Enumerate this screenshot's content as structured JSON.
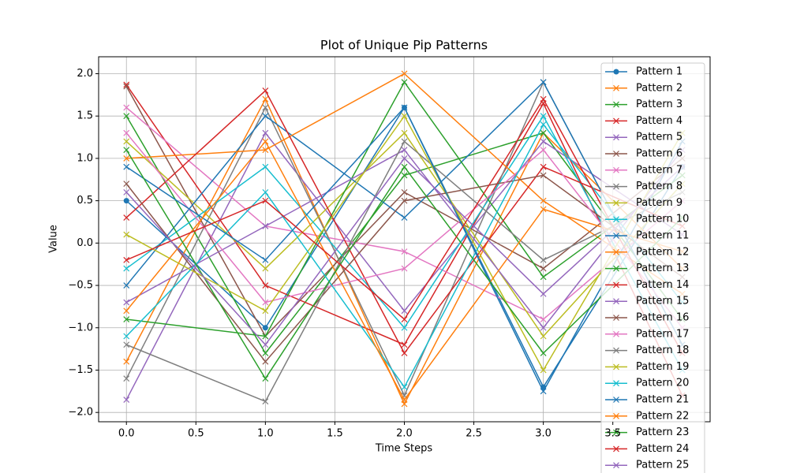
{
  "chart_data": {
    "type": "line",
    "title": "Plot of Unique Pip Patterns",
    "xlabel": "Time Steps",
    "ylabel": "Value",
    "x": [
      0,
      1,
      2,
      3,
      4
    ],
    "xlim": [
      -0.2,
      4.2
    ],
    "ylim": [
      -2.11,
      2.2
    ],
    "xticks": [
      {
        "value": 0,
        "label": "0.0"
      },
      {
        "value": 0.5,
        "label": "0.5"
      },
      {
        "value": 1,
        "label": "1.0"
      },
      {
        "value": 1.5,
        "label": "1.5"
      },
      {
        "value": 2,
        "label": "2.0"
      },
      {
        "value": 2.5,
        "label": "2.5"
      },
      {
        "value": 3,
        "label": "3.0"
      },
      {
        "value": 3.5,
        "label": "3.5"
      }
    ],
    "yticks": [
      {
        "value": -2,
        "label": "−2.0"
      },
      {
        "value": -1.5,
        "label": "−1.5"
      },
      {
        "value": -1,
        "label": "−1.0"
      },
      {
        "value": -0.5,
        "label": "−0.5"
      },
      {
        "value": 0,
        "label": "0.0"
      },
      {
        "value": 0.5,
        "label": "0.5"
      },
      {
        "value": 1,
        "label": "1.0"
      },
      {
        "value": 1.5,
        "label": "1.5"
      },
      {
        "value": 2,
        "label": "2.0"
      }
    ],
    "grid": true,
    "legend": "upper right",
    "series": [
      {
        "name": "Pattern 1",
        "color": "#1f77b4",
        "marker": "o",
        "values": [
          0.5,
          -1.0,
          1.6,
          -1.7,
          0.9
        ]
      },
      {
        "name": "Pattern 2",
        "color": "#ff7f0e",
        "marker": "x",
        "values": [
          -1.4,
          1.7,
          -1.9,
          1.3,
          -0.3
        ]
      },
      {
        "name": "Pattern 3",
        "color": "#2ca02c",
        "marker": "x",
        "values": [
          1.5,
          -1.3,
          0.8,
          1.3,
          -0.9
        ]
      },
      {
        "name": "Pattern 4",
        "color": "#d62728",
        "marker": "x",
        "values": [
          1.87,
          -0.5,
          -1.2,
          1.65,
          -1.8
        ]
      },
      {
        "name": "Pattern 5",
        "color": "#9467bd",
        "marker": "x",
        "values": [
          -1.85,
          1.3,
          -0.8,
          1.2,
          0.1
        ]
      },
      {
        "name": "Pattern 6",
        "color": "#8c564b",
        "marker": "x",
        "values": [
          1.85,
          -1.1,
          0.6,
          -0.3,
          1.0
        ]
      },
      {
        "name": "Pattern 7",
        "color": "#e377c2",
        "marker": "x",
        "values": [
          1.6,
          0.2,
          -0.1,
          -0.9,
          0.5
        ]
      },
      {
        "name": "Pattern 8",
        "color": "#7f7f7f",
        "marker": "x",
        "values": [
          -1.6,
          1.6,
          -1.8,
          1.9,
          -1.2
        ]
      },
      {
        "name": "Pattern 9",
        "color": "#bcbd22",
        "marker": "x",
        "values": [
          1.2,
          -0.3,
          1.3,
          -1.1,
          0.7
        ]
      },
      {
        "name": "Pattern 10",
        "color": "#17becf",
        "marker": "x",
        "values": [
          -0.3,
          0.9,
          -1.0,
          1.5,
          -1.5
        ]
      },
      {
        "name": "Pattern 11",
        "color": "#1f77b4",
        "marker": "x",
        "values": [
          -0.5,
          1.5,
          0.3,
          1.9,
          -1.2
        ]
      },
      {
        "name": "Pattern 12",
        "color": "#ff7f0e",
        "marker": "x",
        "values": [
          1.0,
          1.1,
          2.0,
          0.5,
          -0.6
        ]
      },
      {
        "name": "Pattern 13",
        "color": "#2ca02c",
        "marker": "x",
        "values": [
          -0.9,
          -1.1,
          1.9,
          -0.4,
          0.8
        ]
      },
      {
        "name": "Pattern 14",
        "color": "#d62728",
        "marker": "x",
        "values": [
          0.3,
          1.8,
          -1.3,
          0.9,
          0.2
        ]
      },
      {
        "name": "Pattern 15",
        "color": "#9467bd",
        "marker": "x",
        "values": [
          -0.7,
          0.2,
          1.1,
          -1.0,
          1.1
        ]
      },
      {
        "name": "Pattern 16",
        "color": "#8c564b",
        "marker": "x",
        "values": [
          0.7,
          -1.4,
          0.5,
          0.8,
          -0.4
        ]
      },
      {
        "name": "Pattern 17",
        "color": "#e377c2",
        "marker": "x",
        "values": [
          1.3,
          -0.7,
          -0.3,
          1.1,
          -1.0
        ]
      },
      {
        "name": "Pattern 18",
        "color": "#7f7f7f",
        "marker": "x",
        "values": [
          -1.2,
          -1.87,
          1.2,
          -0.2,
          0.6
        ]
      },
      {
        "name": "Pattern 19",
        "color": "#bcbd22",
        "marker": "x",
        "values": [
          0.1,
          -0.8,
          1.5,
          -1.5,
          1.3
        ]
      },
      {
        "name": "Pattern 20",
        "color": "#17becf",
        "marker": "x",
        "values": [
          -1.1,
          0.6,
          -1.7,
          1.4,
          -0.7
        ]
      },
      {
        "name": "Pattern 21",
        "color": "#1f77b4",
        "marker": "x",
        "values": [
          0.9,
          -0.2,
          1.6,
          -1.75,
          1.2
        ]
      },
      {
        "name": "Pattern 22",
        "color": "#ff7f0e",
        "marker": "x",
        "values": [
          -0.8,
          1.2,
          -1.85,
          0.4,
          -0.1
        ]
      },
      {
        "name": "Pattern 23",
        "color": "#2ca02c",
        "marker": "x",
        "values": [
          1.1,
          -1.6,
          0.9,
          -1.3,
          0.3
        ]
      },
      {
        "name": "Pattern 24",
        "color": "#d62728",
        "marker": "x",
        "values": [
          -0.2,
          0.5,
          -0.9,
          1.7,
          -1.3
        ]
      },
      {
        "name": "Pattern 25",
        "color": "#9467bd",
        "marker": "x",
        "values": [
          0.6,
          -1.2,
          1.0,
          -0.6,
          0.9
        ]
      }
    ]
  }
}
